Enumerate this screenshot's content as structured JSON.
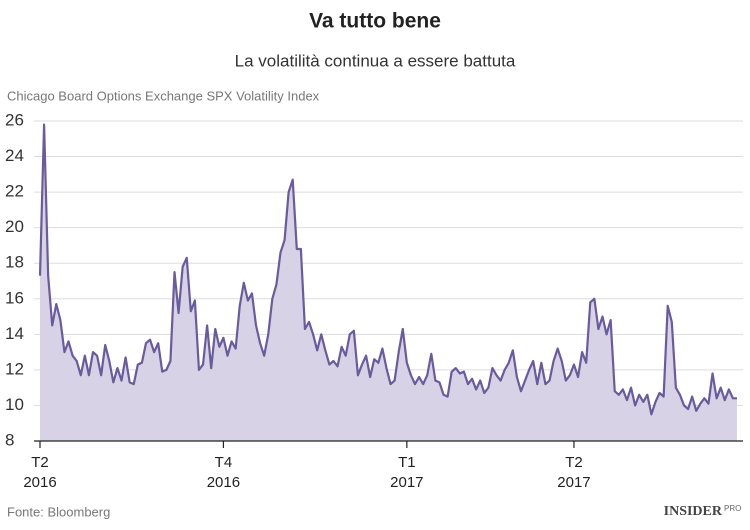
{
  "chart_data": {
    "type": "area",
    "title": "Va tutto bene",
    "subtitle": "La volatilità continua a essere battuta",
    "y_label": "Chicago Board Options Exchange SPX Volatility Index",
    "source": "Fonte: Bloomberg",
    "logo": "INSIDER",
    "logo_sub": "PRO",
    "color": "#6a5b9c",
    "fill": "#d7d2e6",
    "grid": true,
    "ylim": [
      8,
      26
    ],
    "yticks": [
      8,
      10,
      12,
      14,
      16,
      18,
      20,
      22,
      24,
      26
    ],
    "categories": [
      "T2 2016",
      null,
      null,
      null,
      null,
      null,
      null,
      null,
      null,
      null,
      null,
      null,
      null,
      null,
      null,
      null,
      null,
      null,
      null,
      null,
      null,
      null,
      null,
      null,
      null,
      null,
      null,
      null,
      null,
      null,
      null,
      null,
      null,
      null,
      null,
      null,
      null,
      null,
      null,
      null,
      null,
      null,
      null,
      null,
      null,
      "T4 2016",
      null,
      null,
      null,
      null,
      null,
      null,
      null,
      null,
      null,
      null,
      null,
      null,
      null,
      null,
      null,
      null,
      null,
      null,
      null,
      null,
      null,
      null,
      null,
      null,
      null,
      null,
      null,
      null,
      null,
      null,
      null,
      null,
      null,
      null,
      null,
      null,
      null,
      null,
      null,
      null,
      null,
      null,
      null,
      null,
      "T1 2017",
      null,
      null,
      null,
      null,
      null,
      null,
      null,
      null,
      null,
      null,
      null,
      null,
      null,
      null,
      null,
      null,
      null,
      null,
      null,
      null,
      null,
      null,
      null,
      null,
      null,
      null,
      null,
      null,
      null,
      null,
      null,
      null,
      null,
      null,
      null,
      null,
      null,
      null,
      null,
      null,
      "T2 2017",
      null,
      null,
      null,
      null,
      null,
      null,
      null,
      null,
      null,
      null,
      null,
      null,
      null,
      null,
      null,
      null,
      null,
      null,
      null,
      null,
      null,
      null,
      null,
      null,
      null,
      null,
      null,
      null,
      null,
      null,
      null,
      null,
      null,
      null,
      null,
      null,
      null,
      null,
      null,
      null
    ],
    "values": [
      17.3,
      25.8,
      17.3,
      14.5,
      15.7,
      14.8,
      13,
      13.6,
      12.8,
      12.5,
      11.7,
      12.8,
      11.7,
      13,
      12.8,
      11.7,
      13.4,
      12.5,
      11.3,
      12.1,
      11.4,
      12.7,
      11.3,
      11.2,
      12.3,
      12.4,
      13.5,
      13.7,
      13,
      13.5,
      11.9,
      12,
      12.5,
      17.5,
      15.2,
      17.8,
      18.3,
      15.3,
      15.9,
      12,
      12.3,
      14.5,
      12.1,
      14.3,
      13.3,
      13.8,
      12.8,
      13.6,
      13.2,
      15.6,
      16.9,
      15.9,
      16.3,
      14.5,
      13.5,
      12.8,
      14,
      16,
      16.8,
      18.6,
      19.3,
      22,
      22.7,
      18.8,
      18.8,
      14.3,
      14.7,
      14,
      13.1,
      14,
      13.1,
      12.3,
      12.5,
      12.2,
      13.3,
      12.8,
      14,
      14.2,
      11.7,
      12.3,
      12.8,
      11.6,
      12.6,
      12.4,
      13.2,
      12.1,
      11.2,
      11.4,
      13,
      14.3,
      12.4,
      11.7,
      11.2,
      11.6,
      11.2,
      11.7,
      12.9,
      11.4,
      11.3,
      10.6,
      10.5,
      11.9,
      12.1,
      11.8,
      11.9,
      11.2,
      11.5,
      10.9,
      11.4,
      10.7,
      11,
      12.1,
      11.7,
      11.4,
      12,
      12.4,
      13.1,
      11.6,
      10.8,
      11.4,
      12,
      12.5,
      11.2,
      12.4,
      11.2,
      11.4,
      12.5,
      13.2,
      12.5,
      11.4,
      11.7,
      12.3,
      11.6,
      13,
      12.4,
      15.8,
      16,
      14.3,
      15,
      14,
      14.8,
      10.8,
      10.6,
      10.9,
      10.3,
      11,
      10,
      10.6,
      10.2,
      10.6,
      9.5,
      10.2,
      10.7,
      10.5,
      15.6,
      14.7,
      11,
      10.6,
      10,
      9.8,
      10.5,
      9.7,
      10.1,
      10.4,
      10.1,
      11.8,
      10.4,
      11,
      10.3,
      10.9,
      10.4,
      10.4
    ]
  }
}
